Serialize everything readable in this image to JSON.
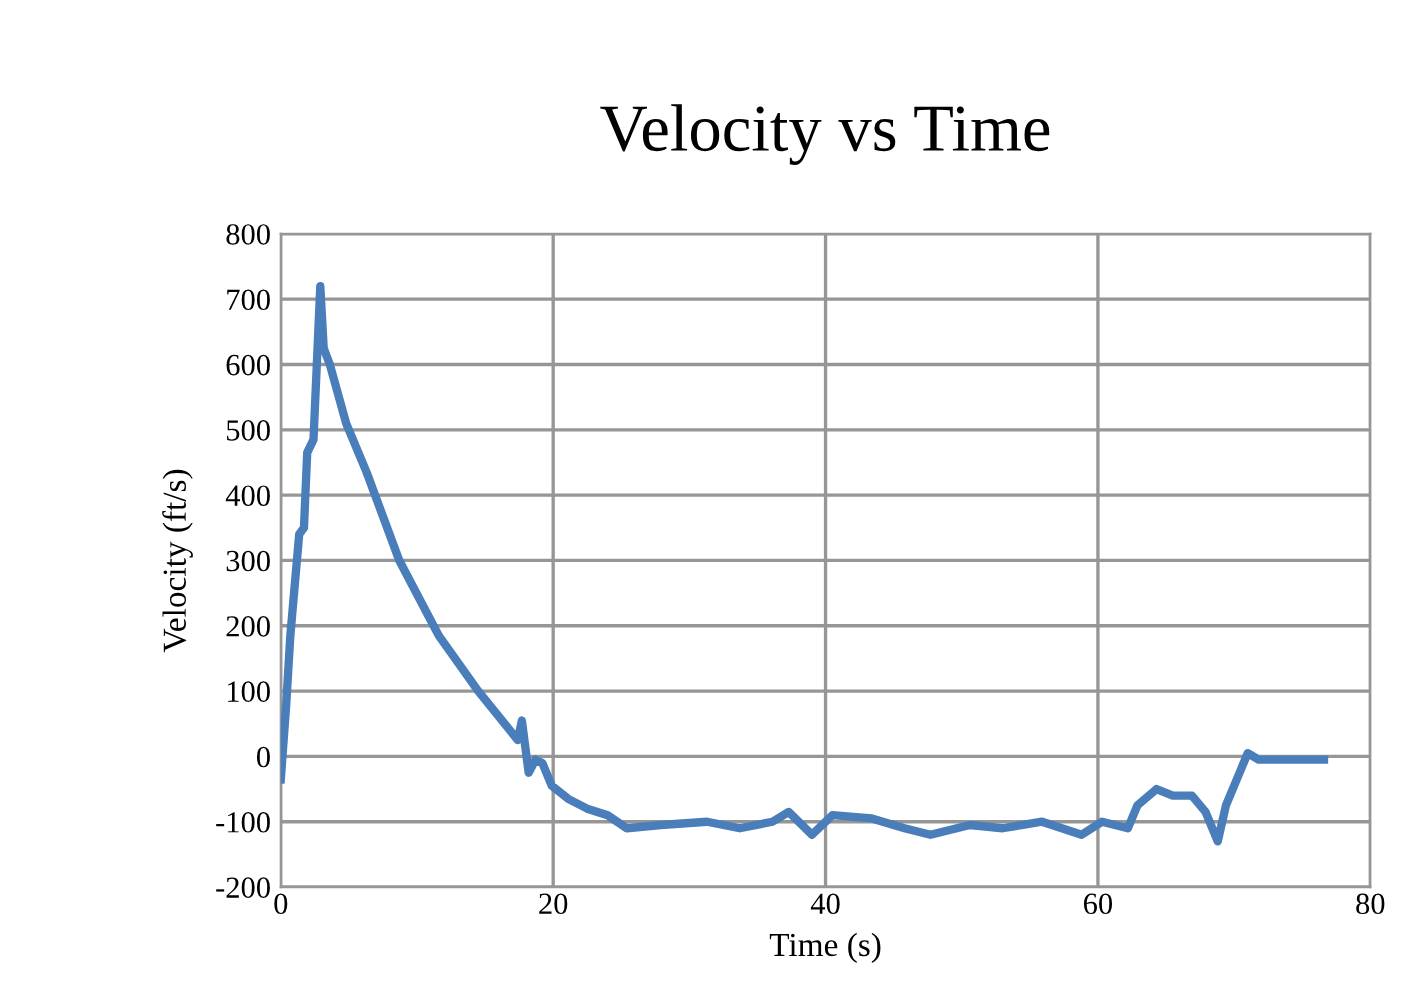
{
  "chart_data": {
    "type": "line",
    "title": "Velocity vs Time",
    "xlabel": "Time (s)",
    "ylabel": "Velocity (ft/s)",
    "xlim": [
      0,
      80
    ],
    "xticks": [
      0,
      20,
      40,
      60,
      80
    ],
    "ylim": [
      -200,
      800
    ],
    "yticks": [
      -200,
      -100,
      0,
      100,
      200,
      300,
      400,
      500,
      600,
      700,
      800
    ],
    "grid": true,
    "legend": false,
    "marker": "none",
    "line_style": "solid",
    "series": [
      {
        "color": "#4a7ebb",
        "x": [
          0,
          0.4,
          0.7,
          1.35,
          1.7,
          1.94,
          2.4,
          2.9,
          3.15,
          3.6,
          4.8,
          6.3,
          8.7,
          11.6,
          14.5,
          17.4,
          17.7,
          18.2,
          18.7,
          19.2,
          19.9,
          21.1,
          22.5,
          24,
          25.4,
          27.9,
          31.3,
          33.7,
          36.1,
          37.3,
          39,
          40.5,
          43.4,
          45.8,
          47.7,
          50.6,
          53,
          55.9,
          58.8,
          60.3,
          62.2,
          62.9,
          64.3,
          65.5,
          66.9,
          67.9,
          68.8,
          69.4,
          70.4,
          71,
          71.8,
          76.6
        ],
        "values": [
          -35,
          80,
          185,
          340,
          350,
          465,
          485,
          720,
          625,
          600,
          510,
          435,
          300,
          185,
          100,
          25,
          55,
          -25,
          -5,
          -10,
          -45,
          -65,
          -80,
          -90,
          -110,
          -105,
          -100,
          -110,
          -100,
          -85,
          -120,
          -90,
          -95,
          -110,
          -120,
          -105,
          -110,
          -100,
          -120,
          -100,
          -110,
          -75,
          -50,
          -60,
          -60,
          -85,
          -130,
          -75,
          -25,
          5,
          -5,
          -5
        ]
      }
    ]
  }
}
